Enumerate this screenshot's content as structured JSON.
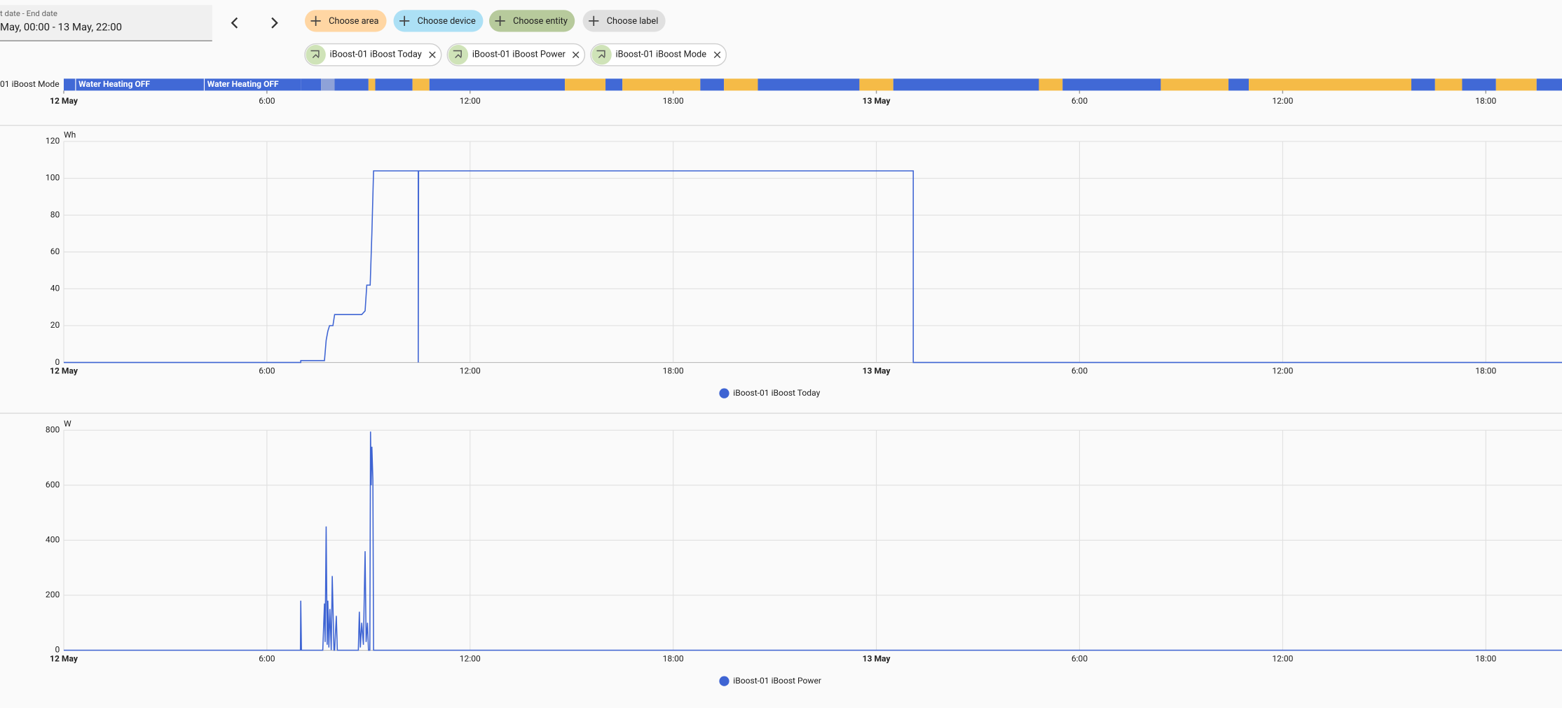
{
  "date_picker": {
    "label": "t date - End date",
    "value": "May, 00:00 - 13 May, 22:00"
  },
  "buttons": [
    "Choose area",
    "Choose device",
    "Choose entity",
    "Choose label"
  ],
  "chips": [
    "iBoost-01 iBoost Today",
    "iBoost-01 iBoost Power",
    "iBoost-01 iBoost Mode"
  ],
  "chart_data": [
    {
      "type": "timeline",
      "label": "01 iBoost Mode",
      "xlim": [
        0,
        44.25
      ],
      "xticks": [
        {
          "value": 0,
          "label": "12 May"
        },
        {
          "value": 6,
          "label": "6:00"
        },
        {
          "value": 12,
          "label": "12:00"
        },
        {
          "value": 18,
          "label": "18:00"
        },
        {
          "value": 24,
          "label": "13 May"
        },
        {
          "value": 30,
          "label": "6:00"
        },
        {
          "value": 36,
          "label": "12:00"
        },
        {
          "value": 42,
          "label": "18:00"
        }
      ],
      "segments": [
        {
          "start": 0,
          "end": 0.35,
          "color": "#4169d6"
        },
        {
          "start": 0.35,
          "end": 4.15,
          "color": "#4169d6",
          "label": "Water Heating OFF"
        },
        {
          "start": 4.15,
          "end": 7.0,
          "color": "#4169d6",
          "label": "Water Heating OFF"
        },
        {
          "start": 7.0,
          "end": 7.6,
          "color": "#4169d6"
        },
        {
          "start": 7.6,
          "end": 8.0,
          "color": "#8ea2d8"
        },
        {
          "start": 8.0,
          "end": 9.0,
          "color": "#4169d6"
        },
        {
          "start": 9.0,
          "end": 9.2,
          "color": "#f5bb47"
        },
        {
          "start": 9.2,
          "end": 10.3,
          "color": "#4169d6"
        },
        {
          "start": 10.3,
          "end": 10.8,
          "color": "#f5bb47"
        },
        {
          "start": 10.8,
          "end": 14.8,
          "color": "#4169d6"
        },
        {
          "start": 14.8,
          "end": 16.0,
          "color": "#f5bb47"
        },
        {
          "start": 16.0,
          "end": 16.5,
          "color": "#4169d6"
        },
        {
          "start": 16.5,
          "end": 18.8,
          "color": "#f5bb47"
        },
        {
          "start": 18.8,
          "end": 19.5,
          "color": "#4169d6"
        },
        {
          "start": 19.5,
          "end": 20.5,
          "color": "#f5bb47"
        },
        {
          "start": 20.5,
          "end": 23.5,
          "color": "#4169d6"
        },
        {
          "start": 23.5,
          "end": 24.5,
          "color": "#f5bb47"
        },
        {
          "start": 24.5,
          "end": 28.8,
          "color": "#4169d6"
        },
        {
          "start": 28.8,
          "end": 29.5,
          "color": "#f5bb47"
        },
        {
          "start": 29.5,
          "end": 32.4,
          "color": "#4169d6"
        },
        {
          "start": 32.4,
          "end": 34.4,
          "color": "#f5bb47"
        },
        {
          "start": 34.4,
          "end": 35.0,
          "color": "#4169d6"
        },
        {
          "start": 35.0,
          "end": 39.8,
          "color": "#f5bb47"
        },
        {
          "start": 39.8,
          "end": 40.5,
          "color": "#4169d6"
        },
        {
          "start": 40.5,
          "end": 41.3,
          "color": "#f5bb47"
        },
        {
          "start": 41.3,
          "end": 42.3,
          "color": "#4169d6"
        },
        {
          "start": 42.3,
          "end": 43.5,
          "color": "#f5bb47"
        },
        {
          "start": 43.5,
          "end": 44.25,
          "color": "#4169d6"
        }
      ]
    },
    {
      "type": "line",
      "y_unit": "Wh",
      "xlim": [
        0,
        44.25
      ],
      "ylim": [
        0,
        120
      ],
      "yticks": [
        0,
        20,
        40,
        60,
        80,
        100,
        120
      ],
      "xticks": [
        {
          "value": 0,
          "label": "12 May"
        },
        {
          "value": 6,
          "label": "6:00"
        },
        {
          "value": 12,
          "label": "12:00"
        },
        {
          "value": 18,
          "label": "18:00"
        },
        {
          "value": 24,
          "label": "13 May"
        },
        {
          "value": 30,
          "label": "6:00"
        },
        {
          "value": 36,
          "label": "12:00"
        },
        {
          "value": 42,
          "label": "18:00"
        }
      ],
      "grid": true,
      "x": [
        0,
        7.0,
        7.0,
        7.7,
        7.75,
        7.8,
        7.85,
        7.95,
        8.0,
        8.8,
        8.9,
        8.95,
        9.05,
        9.1,
        9.15,
        10.47,
        10.47,
        10.48,
        25.09,
        25.09,
        44.25
      ],
      "series": [
        {
          "name": "iBoost-01 iBoost Today",
          "color": "#3e64d3",
          "values": [
            0,
            0,
            1,
            1,
            12,
            17,
            20,
            20,
            26,
            26,
            28,
            42,
            42,
            70,
            104,
            104,
            0,
            104,
            104,
            0,
            0
          ]
        }
      ]
    },
    {
      "type": "line",
      "y_unit": "W",
      "xlim": [
        0,
        44.25
      ],
      "ylim": [
        0,
        800
      ],
      "yticks": [
        0,
        200,
        400,
        600,
        800
      ],
      "xticks": [
        {
          "value": 0,
          "label": "12 May"
        },
        {
          "value": 6,
          "label": "6:00"
        },
        {
          "value": 12,
          "label": "12:00"
        },
        {
          "value": 18,
          "label": "18:00"
        },
        {
          "value": 24,
          "label": "13 May"
        },
        {
          "value": 30,
          "label": "6:00"
        },
        {
          "value": 36,
          "label": "12:00"
        },
        {
          "value": 42,
          "label": "18:00"
        }
      ],
      "grid": true,
      "x": [
        0,
        6.99,
        7.0,
        7.02,
        7.65,
        7.7,
        7.72,
        7.75,
        7.78,
        7.8,
        7.83,
        7.86,
        7.9,
        7.93,
        7.98,
        8.0,
        8.05,
        8.08,
        8.7,
        8.73,
        8.76,
        8.8,
        8.85,
        8.9,
        8.93,
        8.97,
        9.0,
        9.04,
        9.06,
        9.08,
        9.1,
        9.13,
        9.15,
        44.25
      ],
      "series": [
        {
          "name": "iBoost-01 iBoost Power",
          "color": "#3e64d3",
          "values": [
            0,
            0,
            180,
            0,
            0,
            170,
            30,
            450,
            20,
            180,
            10,
            150,
            0,
            270,
            0,
            0,
            125,
            0,
            0,
            140,
            10,
            100,
            20,
            360,
            30,
            100,
            0,
            0,
            795,
            600,
            740,
            620,
            0,
            0
          ]
        }
      ]
    }
  ]
}
